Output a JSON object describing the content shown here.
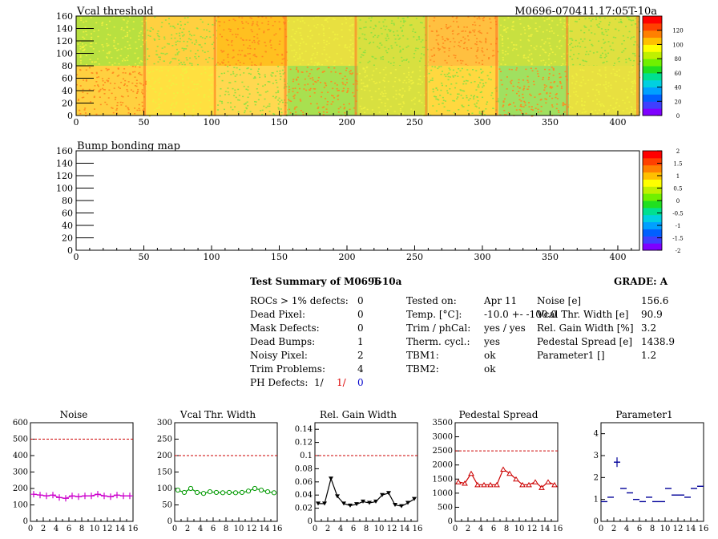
{
  "maps": [
    {
      "title": "Vcal threshold",
      "subtitle": "M0696-070411.17:05T-10a",
      "x_ticks": [
        "0",
        "50",
        "100",
        "150",
        "200",
        "250",
        "300",
        "350",
        "400"
      ],
      "y_ticks": [
        "0",
        "20",
        "40",
        "60",
        "80",
        "100",
        "120",
        "140",
        "160"
      ],
      "z_ticks": [
        "0",
        "20",
        "40",
        "60",
        "80",
        "100",
        "120"
      ],
      "xlim": [
        0,
        416
      ],
      "ylim": [
        0,
        160
      ],
      "zlim": [
        0,
        140
      ]
    },
    {
      "title": "Bump bonding map",
      "x_ticks": [
        "0",
        "50",
        "100",
        "150",
        "200",
        "250",
        "300",
        "350",
        "400"
      ],
      "y_ticks": [
        "0",
        "20",
        "40",
        "60",
        "80",
        "100",
        "120",
        "140",
        "160"
      ],
      "z_ticks": [
        "-2",
        "-1.5",
        "-1",
        "-0.5",
        "0",
        "0.5",
        "1",
        "1.5",
        "2"
      ],
      "xlim": [
        0,
        416
      ],
      "ylim": [
        0,
        160
      ],
      "zlim": [
        -2,
        2
      ]
    }
  ],
  "summary": {
    "title": "Test Summary of M0696",
    "temp_tag": "T-10a",
    "grade": "GRADE:  A",
    "defects": [
      {
        "label": "ROCs > 1% defects:",
        "value": "0"
      },
      {
        "label": "Dead Pixel:",
        "value": "0"
      },
      {
        "label": "Mask Defects:",
        "value": "0"
      },
      {
        "label": "Dead Bumps:",
        "value": "1"
      },
      {
        "label": "Noisy Pixel:",
        "value": "2"
      },
      {
        "label": "Trim Problems:",
        "value": "4"
      }
    ],
    "ph_defects": {
      "label": "PH Defects:",
      "v1": "1/",
      "v2": "1/",
      "v3": "0"
    },
    "conditions": [
      {
        "label": "Tested on:",
        "value": "Apr 11"
      },
      {
        "label": "Temp. [°C]:",
        "value": "-10.0 +- -100.0"
      },
      {
        "label": "Trim / phCal:",
        "value": "yes / yes"
      },
      {
        "label": "Therm. cycl.:",
        "value": "yes"
      },
      {
        "label": "TBM1:",
        "value": "ok"
      },
      {
        "label": "TBM2:",
        "value": "ok"
      }
    ],
    "params": [
      {
        "label": "Noise [e]",
        "value": "156.6"
      },
      {
        "label": "Vcal Thr. Width [e]",
        "value": "90.9"
      },
      {
        "label": "Rel. Gain Width [%]",
        "value": "3.2"
      },
      {
        "label": "Pedestal Spread [e]",
        "value": "1438.9"
      },
      {
        "label": "Parameter1 []",
        "value": "1.2"
      }
    ]
  },
  "chart_data": [
    {
      "type": "line",
      "title": "Noise",
      "color": "#cc00cc",
      "marker": "cross",
      "x": [
        0,
        1,
        2,
        3,
        4,
        5,
        6,
        7,
        8,
        9,
        10,
        11,
        12,
        13,
        14,
        15
      ],
      "y": [
        165,
        160,
        155,
        160,
        145,
        140,
        155,
        150,
        155,
        155,
        165,
        155,
        150,
        160,
        155,
        155
      ],
      "limit": 500,
      "ylim": [
        0,
        600
      ],
      "y_ticks": [
        "0",
        "100",
        "200",
        "300",
        "400",
        "500",
        "600"
      ],
      "x_ticks": [
        "0",
        "2",
        "4",
        "6",
        "8",
        "10",
        "12",
        "14",
        "16"
      ]
    },
    {
      "type": "line",
      "title": "Vcal Thr. Width",
      "color": "#009900",
      "marker": "circle",
      "x": [
        0,
        1,
        2,
        3,
        4,
        5,
        6,
        7,
        8,
        9,
        10,
        11,
        12,
        13,
        14,
        15
      ],
      "y": [
        95,
        88,
        100,
        88,
        85,
        90,
        88,
        87,
        88,
        87,
        88,
        92,
        100,
        95,
        90,
        87
      ],
      "limit": 200,
      "ylim": [
        0,
        300
      ],
      "y_ticks": [
        "0",
        "50",
        "100",
        "150",
        "200",
        "250",
        "300"
      ],
      "x_ticks": [
        "0",
        "2",
        "4",
        "6",
        "8",
        "10",
        "12",
        "14",
        "16"
      ]
    },
    {
      "type": "line",
      "title": "Rel. Gain Width",
      "color": "#000000",
      "marker": "triangle-down",
      "x": [
        0,
        1,
        2,
        3,
        4,
        5,
        6,
        7,
        8,
        9,
        10,
        11,
        12,
        13,
        14,
        15
      ],
      "y": [
        0.027,
        0.027,
        0.065,
        0.038,
        0.027,
        0.024,
        0.026,
        0.03,
        0.028,
        0.03,
        0.04,
        0.043,
        0.025,
        0.023,
        0.028,
        0.034
      ],
      "limit": 0.1,
      "ylim": [
        0,
        0.15
      ],
      "y_ticks": [
        "0",
        "0.02",
        "0.04",
        "0.06",
        "0.08",
        "0.1",
        "0.12",
        "0.14"
      ],
      "x_ticks": [
        "0",
        "2",
        "4",
        "6",
        "8",
        "10",
        "12",
        "14",
        "16"
      ]
    },
    {
      "type": "line",
      "title": "Pedestal Spread",
      "color": "#cc0000",
      "marker": "triangle-up",
      "x": [
        0,
        1,
        2,
        3,
        4,
        5,
        6,
        7,
        8,
        9,
        10,
        11,
        12,
        13,
        14,
        15
      ],
      "y": [
        1400,
        1350,
        1700,
        1300,
        1300,
        1300,
        1300,
        1850,
        1700,
        1500,
        1300,
        1300,
        1400,
        1200,
        1400,
        1300
      ],
      "limit": 2500,
      "ylim": [
        0,
        3500
      ],
      "y_ticks": [
        "0",
        "500",
        "1000",
        "1500",
        "2000",
        "2500",
        "3000",
        "3500"
      ],
      "x_ticks": [
        "0",
        "2",
        "4",
        "6",
        "8",
        "10",
        "12",
        "14",
        "16"
      ]
    },
    {
      "type": "scatter",
      "title": "Parameter1",
      "color": "#000099",
      "marker": "bar",
      "x": [
        0,
        1,
        2,
        3,
        4,
        5,
        6,
        7,
        8,
        9,
        10,
        11,
        12,
        13,
        14,
        15
      ],
      "y": [
        0.9,
        1.1,
        2.7,
        1.5,
        1.3,
        1.0,
        0.9,
        1.1,
        0.9,
        0.9,
        1.5,
        1.2,
        1.2,
        1.1,
        1.5,
        1.6
      ],
      "limit": null,
      "ylim": [
        0,
        4.5
      ],
      "y_ticks": [
        "0",
        "1",
        "2",
        "3",
        "4"
      ],
      "x_ticks": [
        "0",
        "2",
        "4",
        "6",
        "8",
        "10",
        "12",
        "14",
        "16"
      ]
    }
  ]
}
